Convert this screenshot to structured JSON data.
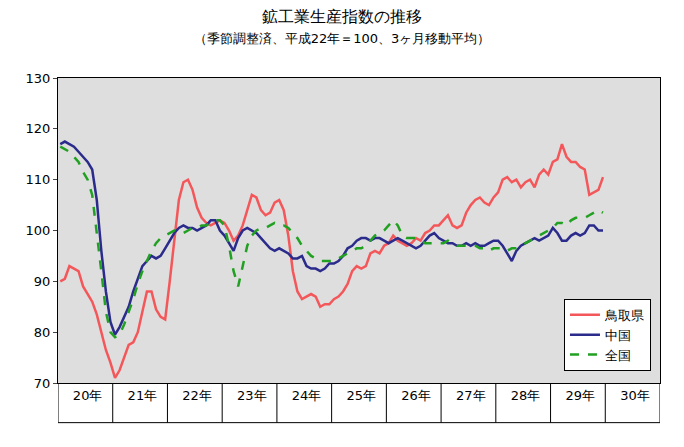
{
  "chart_data": {
    "type": "line",
    "title": "鉱工業生産指数の推移",
    "subtitle": "（季節調整済、平成22年＝100、3ヶ月移動平均）",
    "categories": [
      null,
      null,
      null,
      null,
      null,
      null,
      "20年",
      null,
      null,
      null,
      null,
      null,
      null,
      null,
      null,
      null,
      null,
      null,
      "21年",
      null,
      null,
      null,
      null,
      null,
      null,
      null,
      null,
      null,
      null,
      null,
      "22年",
      null,
      null,
      null,
      null,
      null,
      null,
      null,
      null,
      null,
      null,
      null,
      "23年",
      null,
      null,
      null,
      null,
      null,
      null,
      null,
      null,
      null,
      null,
      null,
      "24年",
      null,
      null,
      null,
      null,
      null,
      null,
      null,
      null,
      null,
      null,
      null,
      "25年",
      null,
      null,
      null,
      null,
      null,
      null,
      null,
      null,
      null,
      null,
      null,
      "26年",
      null,
      null,
      null,
      null,
      null,
      null,
      null,
      null,
      null,
      null,
      null,
      "27年",
      null,
      null,
      null,
      null,
      null,
      null,
      null,
      null,
      null,
      null,
      null,
      "28年",
      null,
      null,
      null,
      null,
      null,
      null,
      null,
      null,
      null,
      null,
      null,
      "29年",
      null,
      null,
      null,
      null,
      null,
      null,
      null,
      null,
      null,
      null,
      null,
      "30年",
      null,
      null,
      null,
      null,
      null
    ],
    "series": [
      {
        "name": "鳥取県",
        "color": "#f4575a",
        "line_style": "solid",
        "values": [
          90,
          90.5,
          93,
          92.5,
          92,
          89,
          87.5,
          86,
          83.5,
          80,
          76.5,
          74,
          71,
          72.5,
          75,
          77.5,
          78,
          80,
          84,
          88,
          88,
          84.5,
          83,
          82.5,
          90,
          98,
          106,
          109.5,
          110,
          108,
          104.5,
          102.5,
          101.5,
          101,
          101.5,
          102,
          101.5,
          100,
          98,
          99,
          101,
          104,
          107,
          106.5,
          104,
          103,
          103.5,
          105.5,
          106,
          104,
          99,
          92,
          88,
          86.5,
          87,
          87.5,
          87,
          85,
          85.5,
          85.5,
          86.5,
          87,
          88,
          89.5,
          92,
          93,
          92.5,
          93,
          95.5,
          96,
          95.5,
          97,
          97.5,
          99,
          98,
          97.5,
          97,
          97.5,
          98.5,
          98,
          99.5,
          100,
          101,
          101,
          102,
          103,
          101,
          100.5,
          101,
          103.5,
          105,
          106,
          106.5,
          105.5,
          105,
          106.5,
          107.5,
          110,
          110.5,
          109.5,
          110,
          108.5,
          109.5,
          110,
          108.5,
          111,
          112,
          111,
          113.5,
          114,
          117,
          114.5,
          113.5,
          113.5,
          112.5,
          112,
          107,
          107.5,
          108,
          110.5,
          null,
          null,
          null,
          null,
          null,
          null,
          null,
          null,
          null,
          null,
          null,
          null
        ]
      },
      {
        "name": "中国",
        "color": "#2b2b8c",
        "line_style": "solid",
        "values": [
          117,
          117.5,
          117,
          116.5,
          115.5,
          114.5,
          113.5,
          112,
          106,
          96,
          88,
          82,
          79.5,
          81,
          83,
          85,
          88,
          90.5,
          93,
          94,
          95,
          94.5,
          95,
          96.5,
          98,
          99.5,
          100.5,
          101,
          100.5,
          100.5,
          100,
          100.5,
          101,
          102,
          102,
          100,
          99,
          97.5,
          96,
          98.5,
          100,
          100.5,
          100,
          99.5,
          98.5,
          97.5,
          96.5,
          96,
          96.5,
          96,
          95.5,
          94.5,
          94.5,
          95,
          93,
          92.5,
          92.5,
          92,
          92.5,
          93.5,
          93.5,
          94,
          95,
          96.5,
          97,
          98,
          98.5,
          98.5,
          98,
          98.5,
          98.5,
          98,
          97.5,
          98,
          98.5,
          98,
          97.5,
          97,
          96.5,
          97,
          98,
          99,
          99.5,
          98.5,
          98,
          97.5,
          97.5,
          97,
          97,
          97.5,
          97,
          97.5,
          97,
          97,
          97.5,
          98,
          98,
          97,
          95.5,
          94,
          96,
          97,
          97.5,
          98,
          98.5,
          98,
          98.5,
          99,
          100.5,
          99.5,
          98,
          98,
          99,
          99.5,
          99,
          99.5,
          101,
          101,
          100,
          100,
          null,
          null,
          null,
          null,
          null,
          null,
          null,
          null,
          null,
          null,
          null,
          null
        ]
      },
      {
        "name": "全国",
        "color": "#22a022",
        "line_style": "dashed",
        "values": [
          116.5,
          116,
          115.5,
          114.5,
          113.5,
          111.5,
          110,
          107,
          100,
          92,
          84,
          80,
          79,
          79.5,
          81.5,
          84,
          86.5,
          89.5,
          92,
          94,
          96,
          97.5,
          98.5,
          99,
          99.5,
          100,
          100,
          99.5,
          100,
          100.5,
          100.5,
          101,
          101,
          101.5,
          102,
          102,
          101,
          97,
          92,
          89,
          93,
          97,
          99,
          100,
          100.5,
          100.5,
          101,
          101.5,
          101,
          101,
          100.5,
          99.5,
          98.5,
          97,
          96,
          95,
          94.5,
          94,
          94,
          94,
          94,
          94.5,
          95,
          95.5,
          96,
          96.5,
          96.5,
          97,
          98,
          99,
          99.5,
          100,
          101,
          102,
          101,
          99,
          98.5,
          98.5,
          98.5,
          98,
          97.5,
          97.5,
          97.5,
          97.5,
          97.5,
          98,
          97.5,
          97,
          97,
          97,
          97,
          97,
          96.5,
          96.5,
          96,
          96.5,
          96.5,
          96.5,
          96,
          96.5,
          96.5,
          97,
          97.5,
          98,
          98.5,
          99,
          99.5,
          100,
          100.5,
          101.5,
          101.5,
          101,
          102,
          102.5,
          102.5,
          102.5,
          103,
          103.5,
          104,
          103.5,
          null,
          null,
          null,
          null,
          null,
          null,
          null,
          null,
          null,
          null,
          null,
          null
        ]
      }
    ],
    "ylim": [
      70,
      130
    ],
    "yticks": [
      70,
      80,
      90,
      100,
      110,
      120,
      130
    ],
    "grid": false,
    "legend": "lower right"
  }
}
